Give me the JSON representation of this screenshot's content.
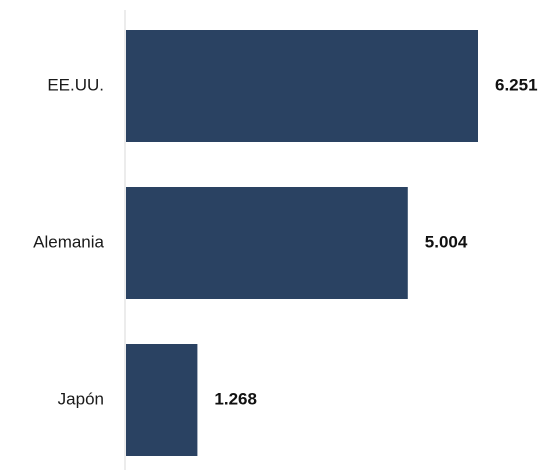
{
  "chart_data": {
    "type": "bar",
    "orientation": "horizontal",
    "categories": [
      "EE.UU.",
      "Alemania",
      "Japón"
    ],
    "values": [
      6251,
      5004,
      1268
    ],
    "value_labels": [
      "6.251",
      "5.004",
      "1.268"
    ],
    "bar_color": "#2a4262",
    "axis_color": "#d9d9d9",
    "xlim": [
      0,
      6251
    ],
    "grid": false,
    "legend": "none",
    "title": "",
    "xlabel": "",
    "ylabel": ""
  }
}
